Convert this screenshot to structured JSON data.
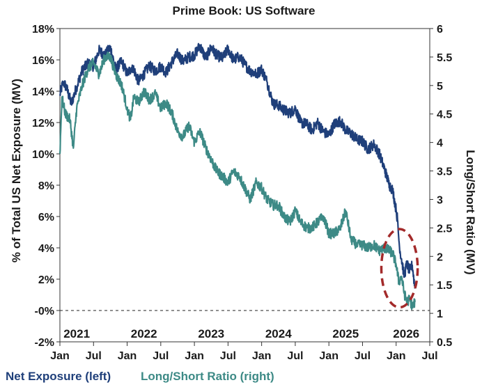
{
  "chart_data": {
    "type": "line",
    "title": "Prime Book: US Software",
    "y_left_label": "% of Total US Net Exposure (MV)",
    "y_right_label": "Long/Short Ratio (MV)",
    "y_left_ticks": [
      "-2%",
      "-0%",
      "2%",
      "4%",
      "6%",
      "8%",
      "10%",
      "12%",
      "14%",
      "16%",
      "18%"
    ],
    "y_left_tick_values": [
      -2,
      0,
      2,
      4,
      6,
      8,
      10,
      12,
      14,
      16,
      18
    ],
    "y_left_range": [
      -2,
      18
    ],
    "y_right_ticks": [
      "0.5",
      "1",
      "1.5",
      "2",
      "2.5",
      "3",
      "3.5",
      "4",
      "4.5",
      "5",
      "5.5",
      "6"
    ],
    "y_right_tick_values": [
      0.5,
      1,
      1.5,
      2,
      2.5,
      3,
      3.5,
      4,
      4.5,
      5,
      5.5,
      6
    ],
    "y_right_range": [
      0.5,
      6
    ],
    "x_ticks": [
      "Jan",
      "Jul",
      "Jan",
      "Jul",
      "Jan",
      "Jul",
      "Jan",
      "Jul",
      "Jan",
      "Jul",
      "Jan",
      "Jul"
    ],
    "x_tick_values": [
      2021.0,
      2021.5,
      2022.0,
      2022.5,
      2023.0,
      2023.5,
      2024.0,
      2024.5,
      2025.0,
      2025.5,
      2026.0,
      2026.5
    ],
    "x_range": [
      2021.0,
      2026.5
    ],
    "year_labels": [
      "2021",
      "2022",
      "2023",
      "2024",
      "2025",
      "2026"
    ],
    "year_label_values": [
      2021.25,
      2022.25,
      2023.25,
      2024.25,
      2025.25,
      2026.15
    ],
    "reference_line": {
      "axis": "left",
      "value": 0,
      "style": "dashed"
    },
    "highlight": {
      "shape": "ellipse",
      "x_center": 2026.05,
      "y_center_left": 2.7,
      "x_radius": 0.27,
      "y_radius_left": 2.5,
      "color": "#a32a2a"
    },
    "series": [
      {
        "name": "Net Exposure (left)",
        "axis": "left",
        "color": "#1f3f7a",
        "points": [
          [
            2021.0,
            13.8
          ],
          [
            2021.05,
            14.6
          ],
          [
            2021.1,
            14.2
          ],
          [
            2021.17,
            13.2
          ],
          [
            2021.25,
            14.3
          ],
          [
            2021.33,
            15.3
          ],
          [
            2021.42,
            15.8
          ],
          [
            2021.5,
            15.6
          ],
          [
            2021.58,
            16.6
          ],
          [
            2021.67,
            16.3
          ],
          [
            2021.75,
            16.8
          ],
          [
            2021.83,
            15.4
          ],
          [
            2021.92,
            15.9
          ],
          [
            2022.0,
            15.1
          ],
          [
            2022.08,
            15.6
          ],
          [
            2022.17,
            14.6
          ],
          [
            2022.25,
            15.1
          ],
          [
            2022.33,
            15.6
          ],
          [
            2022.42,
            15.3
          ],
          [
            2022.5,
            15.6
          ],
          [
            2022.58,
            15.2
          ],
          [
            2022.67,
            15.9
          ],
          [
            2022.75,
            16.4
          ],
          [
            2022.83,
            15.9
          ],
          [
            2022.92,
            16.2
          ],
          [
            2023.0,
            16.3
          ],
          [
            2023.08,
            16.9
          ],
          [
            2023.17,
            16.1
          ],
          [
            2023.25,
            16.8
          ],
          [
            2023.33,
            16.3
          ],
          [
            2023.42,
            16.1
          ],
          [
            2023.5,
            16.7
          ],
          [
            2023.58,
            16.0
          ],
          [
            2023.67,
            16.2
          ],
          [
            2023.75,
            15.7
          ],
          [
            2023.83,
            15.3
          ],
          [
            2023.92,
            15.1
          ],
          [
            2024.0,
            15.4
          ],
          [
            2024.08,
            14.6
          ],
          [
            2024.17,
            13.2
          ],
          [
            2024.25,
            13.1
          ],
          [
            2024.33,
            12.8
          ],
          [
            2024.42,
            12.6
          ],
          [
            2024.5,
            12.9
          ],
          [
            2024.58,
            12.0
          ],
          [
            2024.67,
            11.9
          ],
          [
            2024.75,
            11.5
          ],
          [
            2024.83,
            12.0
          ],
          [
            2024.92,
            11.4
          ],
          [
            2025.0,
            11.2
          ],
          [
            2025.08,
            11.9
          ],
          [
            2025.17,
            12.1
          ],
          [
            2025.25,
            11.5
          ],
          [
            2025.33,
            11.3
          ],
          [
            2025.42,
            10.9
          ],
          [
            2025.5,
            10.8
          ],
          [
            2025.58,
            10.3
          ],
          [
            2025.67,
            10.6
          ],
          [
            2025.75,
            10.0
          ],
          [
            2025.83,
            9.0
          ],
          [
            2025.9,
            8.0
          ],
          [
            2025.95,
            7.7
          ],
          [
            2026.0,
            6.4
          ],
          [
            2026.02,
            5.8
          ],
          [
            2026.05,
            4.0
          ],
          [
            2026.08,
            3.3
          ],
          [
            2026.12,
            2.2
          ],
          [
            2026.16,
            3.0
          ],
          [
            2026.2,
            2.5
          ],
          [
            2026.24,
            2.9
          ],
          [
            2026.28,
            1.4
          ]
        ]
      },
      {
        "name": "Long/Short Ratio (right)",
        "axis": "right",
        "color": "#3d8a86",
        "points": [
          [
            2021.0,
            3.8
          ],
          [
            2021.03,
            4.8
          ],
          [
            2021.08,
            4.5
          ],
          [
            2021.15,
            4.4
          ],
          [
            2021.2,
            3.9
          ],
          [
            2021.25,
            4.6
          ],
          [
            2021.33,
            5.0
          ],
          [
            2021.42,
            5.3
          ],
          [
            2021.5,
            5.4
          ],
          [
            2021.58,
            5.2
          ],
          [
            2021.67,
            5.5
          ],
          [
            2021.75,
            5.5
          ],
          [
            2021.83,
            5.2
          ],
          [
            2021.92,
            5.0
          ],
          [
            2022.0,
            4.6
          ],
          [
            2022.05,
            4.4
          ],
          [
            2022.1,
            4.8
          ],
          [
            2022.17,
            4.7
          ],
          [
            2022.25,
            4.9
          ],
          [
            2022.33,
            4.75
          ],
          [
            2022.42,
            4.85
          ],
          [
            2022.5,
            4.6
          ],
          [
            2022.58,
            4.7
          ],
          [
            2022.67,
            4.5
          ],
          [
            2022.75,
            4.2
          ],
          [
            2022.83,
            4.1
          ],
          [
            2022.92,
            4.3
          ],
          [
            2023.0,
            4.0
          ],
          [
            2023.08,
            4.2
          ],
          [
            2023.17,
            3.9
          ],
          [
            2023.25,
            3.7
          ],
          [
            2023.33,
            3.5
          ],
          [
            2023.42,
            3.4
          ],
          [
            2023.5,
            3.3
          ],
          [
            2023.58,
            3.5
          ],
          [
            2023.67,
            3.4
          ],
          [
            2023.75,
            3.2
          ],
          [
            2023.83,
            3.0
          ],
          [
            2023.92,
            3.3
          ],
          [
            2024.0,
            3.2
          ],
          [
            2024.08,
            3.0
          ],
          [
            2024.17,
            2.9
          ],
          [
            2024.25,
            2.9
          ],
          [
            2024.33,
            2.7
          ],
          [
            2024.42,
            2.6
          ],
          [
            2024.5,
            2.8
          ],
          [
            2024.58,
            2.6
          ],
          [
            2024.67,
            2.5
          ],
          [
            2024.75,
            2.5
          ],
          [
            2024.83,
            2.6
          ],
          [
            2024.92,
            2.7
          ],
          [
            2025.0,
            2.4
          ],
          [
            2025.08,
            2.4
          ],
          [
            2025.17,
            2.5
          ],
          [
            2025.25,
            2.8
          ],
          [
            2025.33,
            2.3
          ],
          [
            2025.42,
            2.2
          ],
          [
            2025.5,
            2.2
          ],
          [
            2025.58,
            2.15
          ],
          [
            2025.67,
            2.2
          ],
          [
            2025.75,
            2.1
          ],
          [
            2025.83,
            2.15
          ],
          [
            2025.9,
            2.1
          ],
          [
            2025.95,
            2.05
          ],
          [
            2026.0,
            1.85
          ],
          [
            2026.04,
            1.55
          ],
          [
            2026.08,
            1.65
          ],
          [
            2026.12,
            1.35
          ],
          [
            2026.16,
            1.2
          ],
          [
            2026.2,
            1.25
          ],
          [
            2026.24,
            1.12
          ],
          [
            2026.28,
            1.2
          ]
        ]
      }
    ],
    "legend": [
      {
        "label": "Net Exposure (left)",
        "color": "#1f3f7a"
      },
      {
        "label": "Long/Short Ratio (right)",
        "color": "#3d8a86"
      }
    ]
  }
}
